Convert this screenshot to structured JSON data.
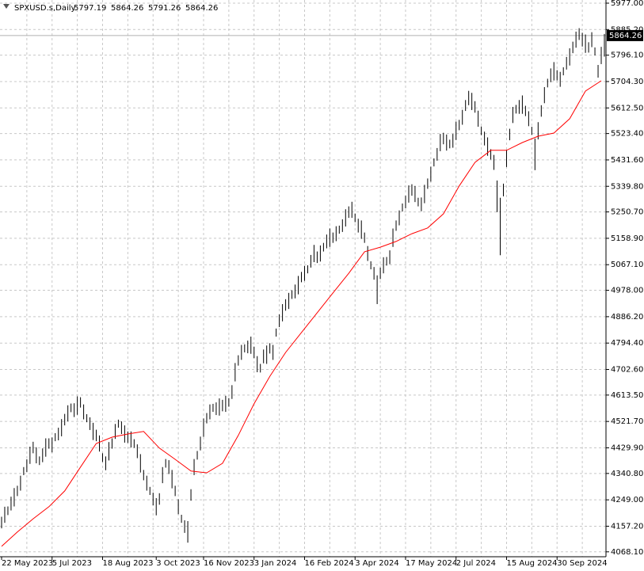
{
  "chart_data": {
    "type": "ohlc",
    "title": "SPXUSD.s,Daily",
    "last_bar": {
      "open": 5797.19,
      "high": 5864.26,
      "low": 5791.26,
      "close": 5864.26
    },
    "ylim": [
      4051,
      5988
    ],
    "yticks": [
      {
        "value": 5977.0,
        "label": "5977.00"
      },
      {
        "value": 5885.2,
        "label": "5885.20"
      },
      {
        "value": 5796.1,
        "label": "5796.10"
      },
      {
        "value": 5704.3,
        "label": "5704.30"
      },
      {
        "value": 5612.5,
        "label": "5612.50"
      },
      {
        "value": 5523.4,
        "label": "5523.40"
      },
      {
        "value": 5431.6,
        "label": "5431.60"
      },
      {
        "value": 5339.8,
        "label": "5339.80"
      },
      {
        "value": 5250.7,
        "label": "5250.70"
      },
      {
        "value": 5158.9,
        "label": "5158.90"
      },
      {
        "value": 5067.1,
        "label": "5067.10"
      },
      {
        "value": 4978.0,
        "label": "4978.00"
      },
      {
        "value": 4886.2,
        "label": "4886.20"
      },
      {
        "value": 4794.4,
        "label": "4794.40"
      },
      {
        "value": 4702.6,
        "label": "4702.60"
      },
      {
        "value": 4613.5,
        "label": "4613.50"
      },
      {
        "value": 4521.7,
        "label": "4521.70"
      },
      {
        "value": 4429.9,
        "label": "4429.90"
      },
      {
        "value": 4340.8,
        "label": "4340.80"
      },
      {
        "value": 4249.0,
        "label": "4249.00"
      },
      {
        "value": 4157.2,
        "label": "4157.20"
      },
      {
        "value": 4068.1,
        "label": "4068.10"
      }
    ],
    "grid": true,
    "bar_color": "#000000",
    "categories": [
      "22 May 2023",
      null,
      null,
      null,
      null,
      null,
      null,
      null,
      null,
      null,
      null,
      null,
      null,
      null,
      null,
      null,
      "5 Jul 2023",
      null,
      null,
      null,
      null,
      null,
      null,
      null,
      null,
      null,
      null,
      null,
      null,
      null,
      null,
      null,
      "18 Aug 2023",
      null,
      null,
      null,
      null,
      null,
      null,
      null,
      null,
      null,
      null,
      null,
      null,
      null,
      null,
      null,
      null,
      "3 Oct 2023",
      null,
      null,
      null,
      null,
      null,
      null,
      null,
      null,
      null,
      null,
      null,
      null,
      null,
      null,
      "16 Nov 2023",
      null,
      null,
      null,
      null,
      null,
      null,
      null,
      null,
      null,
      null,
      null,
      null,
      null,
      null,
      null,
      "3 Jan 2024",
      null,
      null,
      null,
      null,
      null,
      null,
      null,
      null,
      null,
      null,
      null,
      null,
      null,
      null,
      null,
      "16 Feb 2024",
      null,
      null,
      null,
      null,
      null,
      null,
      null,
      null,
      null,
      null,
      null,
      null,
      null,
      null,
      null,
      "3 Apr 2024",
      null,
      null,
      null,
      null,
      null,
      null,
      null,
      null,
      null,
      null,
      null,
      null,
      null,
      null,
      null,
      "17 May 2024",
      null,
      null,
      null,
      null,
      null,
      null,
      null,
      null,
      null,
      null,
      null,
      null,
      null,
      null,
      null,
      "2 Jul 2024",
      null,
      null,
      null,
      null,
      null,
      null,
      null,
      null,
      null,
      null,
      null,
      null,
      null,
      null,
      null,
      "15 Aug 2024",
      null,
      null,
      null,
      null,
      null,
      null,
      null,
      null,
      null,
      null,
      null,
      null,
      null,
      null,
      null,
      "30 Sep 2024",
      null,
      null,
      null,
      null,
      null,
      null,
      null,
      null,
      null,
      null,
      null,
      null,
      null,
      null,
      null
    ],
    "highs": [
      4190,
      4225,
      4226,
      4260,
      4290,
      4298,
      4333,
      4363,
      4390,
      4434,
      4451,
      4432,
      4400,
      4428,
      4463,
      4463,
      4466,
      4481,
      4500,
      4530,
      4548,
      4578,
      4584,
      4585,
      4609,
      4606,
      4581,
      4547,
      4536,
      4517,
      4493,
      4473,
      4411,
      4400,
      4450,
      4463,
      4513,
      4528,
      4522,
      4508,
      4487,
      4487,
      4460,
      4442,
      4408,
      4353,
      4333,
      4294,
      4274,
      4255,
      4272,
      4363,
      4391,
      4387,
      4353,
      4298,
      4251,
      4197,
      4178,
      4175,
      4286,
      4391,
      4419,
      4469,
      4532,
      4551,
      4581,
      4583,
      4588,
      4602,
      4597,
      4611,
      4603,
      4648,
      4725,
      4752,
      4788,
      4790,
      4803,
      4817,
      4782,
      4749,
      4722,
      4772,
      4786,
      4794,
      4788,
      4845,
      4894,
      4930,
      4947,
      4969,
      4978,
      4998,
      5028,
      5042,
      5063,
      5065,
      5101,
      5136,
      5113,
      5134,
      5143,
      5172,
      5193,
      5179,
      5201,
      5203,
      5225,
      5260,
      5270,
      5286,
      5245,
      5227,
      5221,
      5179,
      5132,
      5079,
      5059,
      5030,
      5057,
      5093,
      5094,
      5117,
      5193,
      5221,
      5256,
      5280,
      5307,
      5343,
      5347,
      5341,
      5300,
      5301,
      5345,
      5367,
      5408,
      5437,
      5473,
      5522,
      5526,
      5520,
      5502,
      5522,
      5565,
      5571,
      5606,
      5640,
      5672,
      5665,
      5636,
      5603,
      5548,
      5530,
      5510,
      5469,
      5449,
      5360,
      5300,
      5349,
      5467,
      5540,
      5616,
      5623,
      5640,
      5656,
      5620,
      5601,
      5547,
      5506,
      5563,
      5622,
      5685,
      5714,
      5750,
      5772,
      5744,
      5738,
      5754,
      5790,
      5820,
      5843,
      5878,
      5890,
      5874,
      5868,
      5841,
      5876,
      5823,
      5762,
      5825,
      5870
    ],
    "lows": [
      4150,
      4169,
      4196,
      4212,
      4226,
      4262,
      4281,
      4335,
      4346,
      4374,
      4411,
      4376,
      4370,
      4380,
      4399,
      4427,
      4414,
      4453,
      4456,
      4470,
      4508,
      4522,
      4554,
      4537,
      4545,
      4570,
      4529,
      4519,
      4492,
      4457,
      4453,
      4417,
      4381,
      4352,
      4386,
      4427,
      4461,
      4500,
      4478,
      4448,
      4447,
      4431,
      4430,
      4394,
      4344,
      4317,
      4281,
      4266,
      4230,
      4195,
      4232,
      4307,
      4361,
      4339,
      4289,
      4262,
      4199,
      4169,
      4134,
      4100,
      4246,
      4335,
      4389,
      4421,
      4468,
      4515,
      4529,
      4555,
      4544,
      4542,
      4557,
      4555,
      4573,
      4600,
      4661,
      4716,
      4736,
      4762,
      4759,
      4757,
      4742,
      4693,
      4692,
      4724,
      4722,
      4758,
      4736,
      4817,
      4850,
      4870,
      4907,
      4913,
      4948,
      4950,
      4964,
      5006,
      5011,
      5037,
      5057,
      5076,
      5073,
      5078,
      5113,
      5124,
      5129,
      5143,
      5149,
      5175,
      5181,
      5200,
      5230,
      5230,
      5215,
      5179,
      5157,
      5143,
      5080,
      5051,
      5015,
      4930,
      5017,
      5037,
      5064,
      5069,
      5129,
      5185,
      5204,
      5252,
      5263,
      5283,
      5307,
      5285,
      5270,
      5253,
      5281,
      5331,
      5356,
      5409,
      5429,
      5462,
      5486,
      5464,
      5472,
      5474,
      5501,
      5535,
      5554,
      5602,
      5622,
      5605,
      5596,
      5547,
      5518,
      5482,
      5446,
      5433,
      5397,
      5250,
      5100,
      5305,
      5407,
      5500,
      5560,
      5593,
      5592,
      5592,
      5584,
      5549,
      5519,
      5396,
      5503,
      5582,
      5629,
      5684,
      5702,
      5708,
      5708,
      5686,
      5726,
      5746,
      5760,
      5803,
      5822,
      5849,
      5826,
      5804,
      5805,
      5824,
      5795,
      5718,
      5765,
      5791
    ],
    "ma": {
      "color": "#ff0000",
      "x": [
        0,
        5,
        10,
        15,
        20,
        25,
        30,
        35,
        40,
        45,
        50,
        55,
        60,
        65,
        70,
        75,
        80,
        85,
        90,
        95,
        100,
        105,
        110,
        115,
        120,
        125,
        130,
        135,
        140,
        145,
        150,
        155,
        160,
        165,
        170,
        175,
        180,
        185,
        190
      ],
      "values": [
        4087,
        4137,
        4183,
        4225,
        4280,
        4363,
        4445,
        4467,
        4478,
        4487,
        4429,
        4390,
        4349,
        4343,
        4376,
        4473,
        4583,
        4679,
        4762,
        4831,
        4900,
        4969,
        5037,
        5112,
        5128,
        5148,
        5175,
        5195,
        5244,
        5341,
        5423,
        5465,
        5465,
        5492,
        5514,
        5525,
        5575,
        5671,
        5707
      ]
    },
    "price_line_color": "#b0b0b0"
  }
}
